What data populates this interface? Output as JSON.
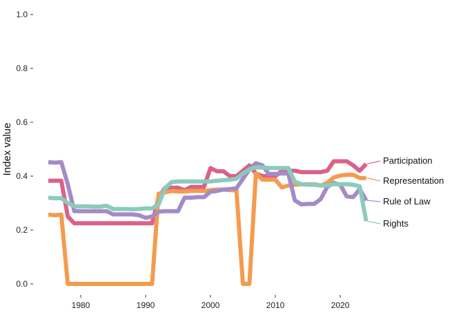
{
  "chart_data": {
    "type": "line",
    "ylabel": "Index value",
    "xlabel": "",
    "xlim": [
      1975,
      2025
    ],
    "ylim": [
      0,
      1.0
    ],
    "x_ticks": [
      1980,
      1990,
      2000,
      2010,
      2020
    ],
    "y_ticks": [
      0.0,
      0.2,
      0.4,
      0.6,
      0.8,
      1.0
    ],
    "x_tick_labels": [
      "1980",
      "1990",
      "2000",
      "2010",
      "2020"
    ],
    "y_tick_labels": [
      "0.0",
      "0.2",
      "0.4",
      "0.6",
      "0.8",
      "1.0"
    ],
    "grid": false,
    "legend": "direct labels at line ends (right)",
    "x": [
      1975,
      1976,
      1977,
      1978,
      1979,
      1980,
      1981,
      1982,
      1983,
      1984,
      1985,
      1986,
      1987,
      1988,
      1989,
      1990,
      1991,
      1992,
      1993,
      1994,
      1995,
      1996,
      1997,
      1998,
      1999,
      2000,
      2001,
      2002,
      2003,
      2004,
      2005,
      2006,
      2007,
      2008,
      2009,
      2010,
      2011,
      2012,
      2013,
      2014,
      2015,
      2016,
      2017,
      2018,
      2019,
      2020,
      2021,
      2022,
      2023,
      2024
    ],
    "series": [
      {
        "name": "Participation",
        "color": "#dc6188",
        "values": [
          0.383,
          0.383,
          0.383,
          0.25,
          0.225,
          0.225,
          0.225,
          0.225,
          0.225,
          0.225,
          0.225,
          0.225,
          0.225,
          0.225,
          0.225,
          0.225,
          0.225,
          0.32,
          0.357,
          0.357,
          0.357,
          0.348,
          0.36,
          0.36,
          0.36,
          0.43,
          0.418,
          0.418,
          0.4,
          0.4,
          0.42,
          0.44,
          0.41,
          0.4,
          0.4,
          0.4,
          0.42,
          0.42,
          0.42,
          0.415,
          0.415,
          0.415,
          0.415,
          0.42,
          0.455,
          0.455,
          0.455,
          0.44,
          0.42,
          0.445
        ]
      },
      {
        "name": "Representation",
        "color": "#f49b4e",
        "values": [
          0.257,
          0.255,
          0.257,
          0.0,
          0.0,
          0.0,
          0.0,
          0.0,
          0.0,
          0.0,
          0.0,
          0.0,
          0.0,
          0.0,
          0.0,
          0.0,
          0.0,
          0.335,
          0.34,
          0.345,
          0.343,
          0.343,
          0.345,
          0.345,
          0.345,
          0.348,
          0.35,
          0.35,
          0.348,
          0.347,
          0.0,
          0.0,
          0.41,
          0.387,
          0.387,
          0.387,
          0.358,
          0.365,
          0.368,
          0.37,
          0.37,
          0.37,
          0.365,
          0.375,
          0.395,
          0.402,
          0.405,
          0.405,
          0.393,
          0.393
        ]
      },
      {
        "name": "Rule of Law",
        "color": "#a48bc7",
        "values": [
          0.452,
          0.45,
          0.452,
          0.37,
          0.27,
          0.27,
          0.27,
          0.27,
          0.27,
          0.27,
          0.258,
          0.258,
          0.258,
          0.258,
          0.255,
          0.245,
          0.25,
          0.268,
          0.27,
          0.27,
          0.27,
          0.32,
          0.32,
          0.322,
          0.322,
          0.342,
          0.345,
          0.35,
          0.352,
          0.355,
          0.39,
          0.425,
          0.448,
          0.44,
          0.408,
          0.408,
          0.41,
          0.41,
          0.31,
          0.295,
          0.297,
          0.297,
          0.315,
          0.36,
          0.375,
          0.368,
          0.325,
          0.322,
          0.352,
          0.31
        ]
      },
      {
        "name": "Rights",
        "color": "#8acbbc",
        "values": [
          0.32,
          0.318,
          0.318,
          0.3,
          0.288,
          0.288,
          0.288,
          0.287,
          0.287,
          0.29,
          0.278,
          0.278,
          0.278,
          0.277,
          0.278,
          0.28,
          0.28,
          0.295,
          0.355,
          0.378,
          0.38,
          0.38,
          0.38,
          0.38,
          0.38,
          0.38,
          0.383,
          0.385,
          0.387,
          0.39,
          0.41,
          0.425,
          0.432,
          0.432,
          0.43,
          0.43,
          0.43,
          0.43,
          0.38,
          0.37,
          0.368,
          0.368,
          0.365,
          0.365,
          0.37,
          0.37,
          0.37,
          0.368,
          0.362,
          0.233
        ]
      }
    ]
  }
}
